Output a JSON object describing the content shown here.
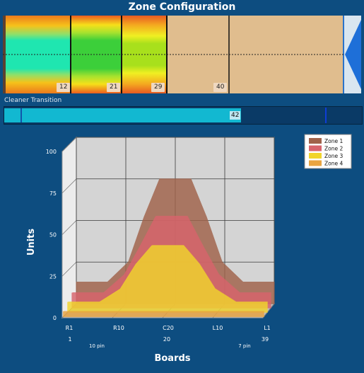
{
  "header": {
    "title": "Zone Configuration"
  },
  "zone_strip": {
    "markers": [
      "12",
      "21",
      "29",
      "40"
    ]
  },
  "cleaner_transition": {
    "label": "Cleaner Transition",
    "value": "42",
    "fill_fraction": 0.665
  },
  "chart_data": {
    "type": "area",
    "projection": "3d",
    "ylabel": "Units",
    "xlabel": "Boards",
    "ylim": [
      0,
      100
    ],
    "yticks": [
      "0",
      "25",
      "50",
      "75",
      "100"
    ],
    "x_tick_labels": [
      "R1",
      "R10",
      "C20",
      "L10",
      "L1"
    ],
    "x_board_numbers": [
      "1",
      "20",
      "39"
    ],
    "x_pin_labels": [
      "10 pin",
      "7 pin"
    ],
    "legend_position": "top-right",
    "grid": true,
    "x": [
      1,
      4,
      7,
      11,
      14,
      17,
      20,
      23,
      26,
      29,
      33,
      36,
      39
    ],
    "series": [
      {
        "name": "Zone 1",
        "color": "#a0624a",
        "values": [
          13,
          13,
          13,
          25,
          52,
          75,
          75,
          75,
          52,
          25,
          13,
          13,
          13
        ]
      },
      {
        "name": "Zone 2",
        "color": "#d8646c",
        "values": [
          9,
          9,
          9,
          20,
          37,
          55,
          55,
          55,
          37,
          20,
          9,
          9,
          9
        ]
      },
      {
        "name": "Zone 3",
        "color": "#f1d52c",
        "values": [
          6,
          6,
          6,
          14,
          29,
          40,
          40,
          40,
          29,
          14,
          6,
          6,
          6
        ]
      },
      {
        "name": "Zone 4",
        "color": "#e9a440",
        "values": [
          3,
          3,
          3,
          3,
          3,
          3,
          3,
          3,
          3,
          3,
          3,
          3,
          3
        ]
      }
    ]
  }
}
